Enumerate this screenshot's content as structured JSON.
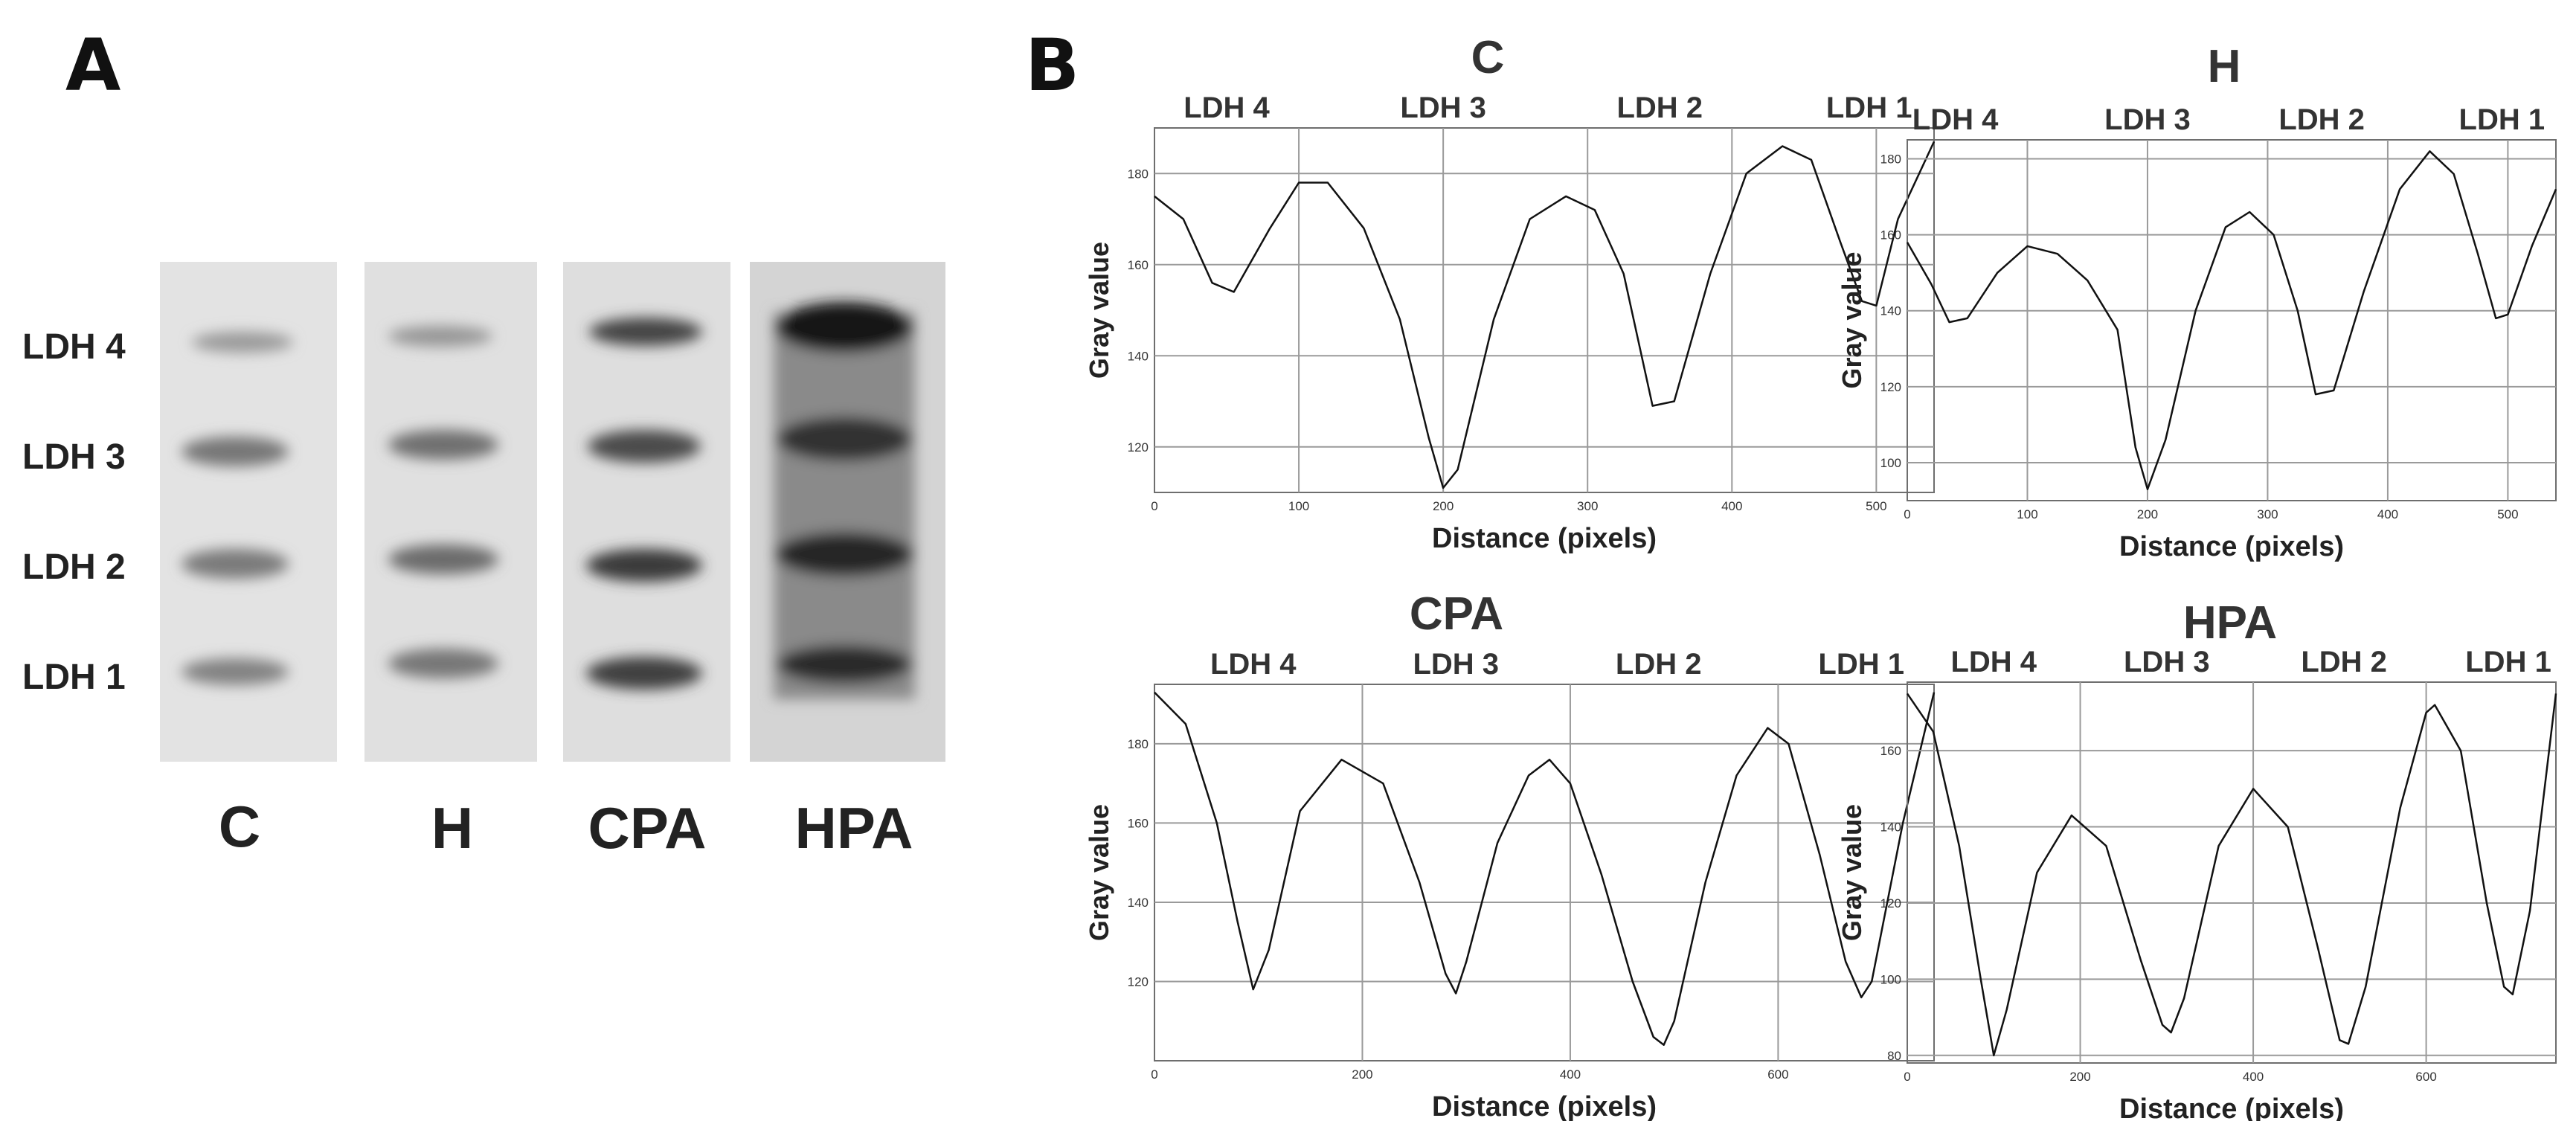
{
  "panel_a": {
    "letter": "A",
    "band_labels": [
      "LDH 4",
      "LDH 3",
      "LDH 2",
      "LDH 1"
    ],
    "lane_labels": [
      "C",
      "H",
      "CPA",
      "HPA"
    ]
  },
  "panel_b": {
    "letter": "B"
  },
  "colors": {
    "line": "#111111",
    "grid": "#9a9a9a",
    "text": "#333333"
  },
  "chart_data": [
    {
      "type": "line",
      "title": "C",
      "xlabel": "Distance (pixels)",
      "ylabel": "Gray value",
      "xlim": [
        0,
        540
      ],
      "ylim": [
        110,
        190
      ],
      "xticks": [
        0,
        100,
        200,
        300,
        400,
        500
      ],
      "yticks": [
        120,
        140,
        160,
        180
      ],
      "peak_labels": [
        {
          "label": "LDH 4",
          "x": 50
        },
        {
          "label": "LDH 3",
          "x": 200
        },
        {
          "label": "LDH 2",
          "x": 350
        },
        {
          "label": "LDH 1",
          "x": 495
        }
      ],
      "grid": true,
      "series": [
        {
          "x": [
            0,
            20,
            40,
            55,
            80,
            100,
            120,
            145,
            170,
            190,
            200,
            210,
            235,
            260,
            285,
            305,
            325,
            345,
            360,
            385,
            410,
            435,
            455,
            475,
            490,
            500,
            515,
            540
          ],
          "y": [
            175,
            170,
            156,
            154,
            168,
            178,
            178,
            168,
            148,
            122,
            111,
            115,
            148,
            170,
            175,
            172,
            158,
            129,
            130,
            158,
            180,
            186,
            183,
            165,
            152,
            151,
            170,
            187
          ]
        }
      ]
    },
    {
      "type": "line",
      "title": "H",
      "xlabel": "Distance (pixels)",
      "ylabel": "Gray value",
      "xlim": [
        0,
        540
      ],
      "ylim": [
        90,
        185
      ],
      "xticks": [
        0,
        100,
        200,
        300,
        400,
        500
      ],
      "yticks": [
        100,
        120,
        140,
        160,
        180
      ],
      "peak_labels": [
        {
          "label": "LDH 4",
          "x": 40
        },
        {
          "label": "LDH 3",
          "x": 200
        },
        {
          "label": "LDH 2",
          "x": 345
        },
        {
          "label": "LDH 1",
          "x": 495
        }
      ],
      "grid": true,
      "series": [
        {
          "x": [
            0,
            20,
            35,
            50,
            75,
            100,
            125,
            150,
            175,
            190,
            200,
            215,
            240,
            265,
            285,
            305,
            325,
            340,
            355,
            380,
            410,
            435,
            455,
            475,
            490,
            500,
            520,
            540
          ],
          "y": [
            158,
            147,
            137,
            138,
            150,
            157,
            155,
            148,
            135,
            104,
            93,
            106,
            140,
            162,
            166,
            160,
            140,
            118,
            119,
            145,
            172,
            182,
            176,
            155,
            138,
            139,
            157,
            172
          ]
        }
      ]
    },
    {
      "type": "line",
      "title": "CPA",
      "xlabel": "Distance (pixels)",
      "ylabel": "Gray value",
      "xlim": [
        0,
        750
      ],
      "ylim": [
        100,
        195
      ],
      "xticks": [
        0,
        200,
        400,
        600
      ],
      "yticks": [
        120,
        140,
        160,
        180
      ],
      "peak_labels": [
        {
          "label": "LDH 4",
          "x": 95
        },
        {
          "label": "LDH 3",
          "x": 290
        },
        {
          "label": "LDH 2",
          "x": 485
        },
        {
          "label": "LDH 1",
          "x": 680
        }
      ],
      "grid": true,
      "series": [
        {
          "x": [
            0,
            30,
            60,
            80,
            95,
            110,
            140,
            180,
            220,
            255,
            280,
            290,
            300,
            330,
            360,
            380,
            400,
            430,
            460,
            480,
            490,
            500,
            530,
            560,
            590,
            610,
            640,
            665,
            680,
            690,
            720,
            750
          ],
          "y": [
            193,
            185,
            160,
            135,
            118,
            128,
            163,
            176,
            170,
            145,
            122,
            117,
            125,
            155,
            172,
            176,
            170,
            147,
            120,
            106,
            104,
            110,
            145,
            172,
            184,
            180,
            152,
            125,
            116,
            120,
            160,
            193
          ]
        }
      ]
    },
    {
      "type": "line",
      "title": "HPA",
      "xlabel": "Distance (pixels)",
      "ylabel": "Gray value",
      "xlim": [
        0,
        750
      ],
      "ylim": [
        78,
        178
      ],
      "xticks": [
        0,
        200,
        400,
        600
      ],
      "yticks": [
        80,
        100,
        120,
        140,
        160
      ],
      "peak_labels": [
        {
          "label": "LDH 4",
          "x": 100
        },
        {
          "label": "LDH 3",
          "x": 300
        },
        {
          "label": "LDH 2",
          "x": 505
        },
        {
          "label": "LDH 1",
          "x": 695
        }
      ],
      "grid": true,
      "series": [
        {
          "x": [
            0,
            30,
            60,
            85,
            100,
            115,
            150,
            190,
            230,
            270,
            295,
            305,
            320,
            360,
            400,
            440,
            475,
            500,
            510,
            530,
            570,
            600,
            610,
            640,
            670,
            690,
            700,
            720,
            750
          ],
          "y": [
            175,
            165,
            135,
            100,
            80,
            92,
            128,
            143,
            135,
            105,
            88,
            86,
            95,
            135,
            150,
            140,
            108,
            84,
            83,
            98,
            145,
            170,
            172,
            160,
            120,
            98,
            96,
            118,
            175
          ]
        }
      ]
    }
  ]
}
